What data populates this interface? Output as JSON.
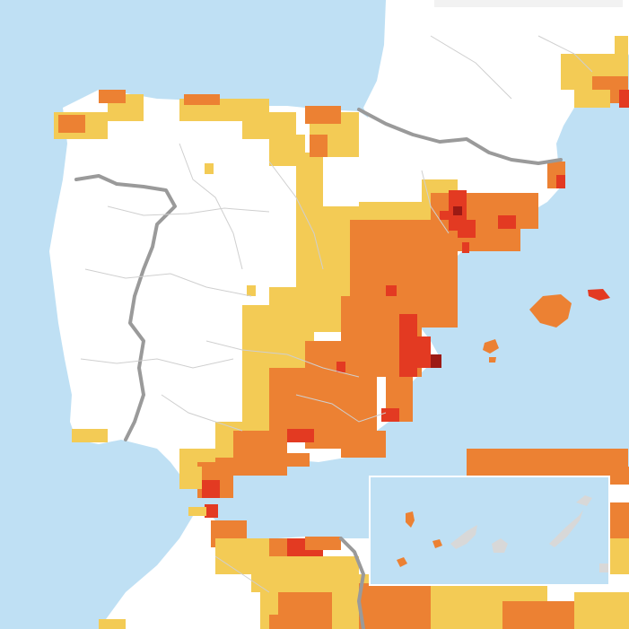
{
  "map": {
    "colors": {
      "sea": "#bfe0f4",
      "land": "#ffffff",
      "level_1": "#f3cb55",
      "level_2": "#ec8133",
      "level_3": "#e33a22",
      "level_4": "#9c1a14",
      "no_data": "#d8d8d8",
      "border": "#9a9a9a",
      "admin_line": "#cfcfcf"
    },
    "regions": [
      {
        "name": "iberian-peninsula",
        "kind": "land"
      },
      {
        "name": "france",
        "kind": "land"
      },
      {
        "name": "north-africa",
        "kind": "land"
      },
      {
        "name": "balearic-islands",
        "kind": "land"
      },
      {
        "name": "canary-islands-inset",
        "kind": "inset"
      }
    ]
  }
}
